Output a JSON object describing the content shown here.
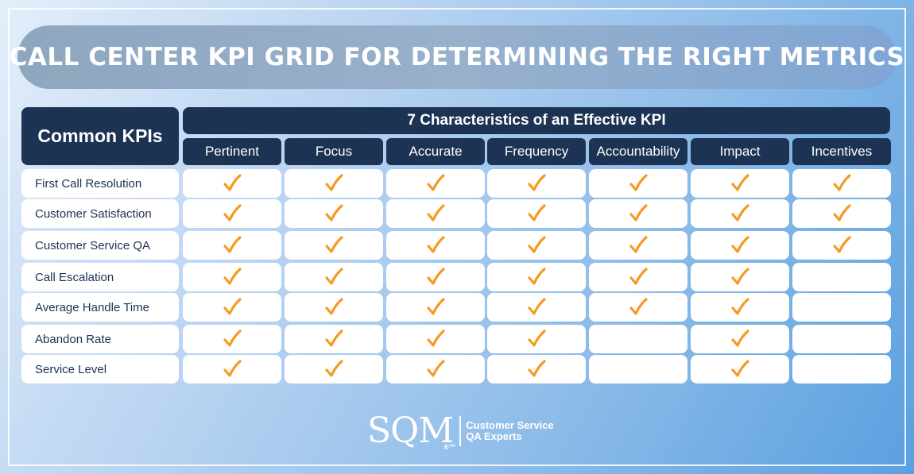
{
  "title": "CALL CENTER KPI GRID FOR DETERMINING THE RIGHT METRICS",
  "table": {
    "corner_label": "Common KPIs",
    "span_header": "7 Characteristics of an Effective KPI",
    "columns": [
      "Pertinent",
      "Focus",
      "Accurate",
      "Frequency",
      "Accountability",
      "Impact",
      "Incentives"
    ],
    "rows": [
      {
        "label": "First Call Resolution",
        "checks": [
          true,
          true,
          true,
          true,
          true,
          true,
          true
        ]
      },
      {
        "label": "Customer Satisfaction",
        "checks": [
          true,
          true,
          true,
          true,
          true,
          true,
          true
        ]
      },
      {
        "label": "Customer Service QA",
        "checks": [
          true,
          true,
          true,
          true,
          true,
          true,
          true
        ]
      },
      {
        "label": "Call Escalation",
        "checks": [
          true,
          true,
          true,
          true,
          true,
          true,
          false
        ]
      },
      {
        "label": "Average Handle Time",
        "checks": [
          true,
          true,
          true,
          true,
          true,
          true,
          false
        ]
      },
      {
        "label": "Abandon Rate",
        "checks": [
          true,
          true,
          true,
          true,
          false,
          true,
          false
        ]
      },
      {
        "label": "Service Level",
        "checks": [
          true,
          true,
          true,
          true,
          false,
          true,
          false
        ]
      }
    ]
  },
  "logo": {
    "mark": "SQM",
    "reg": "®™",
    "tagline_line1": "Customer Service",
    "tagline_line2": "QA Experts"
  },
  "colors": {
    "header": "#1c3353",
    "check": "#f59a23",
    "cell": "#ffffff"
  },
  "icons": {
    "check": "checkmark-icon"
  }
}
